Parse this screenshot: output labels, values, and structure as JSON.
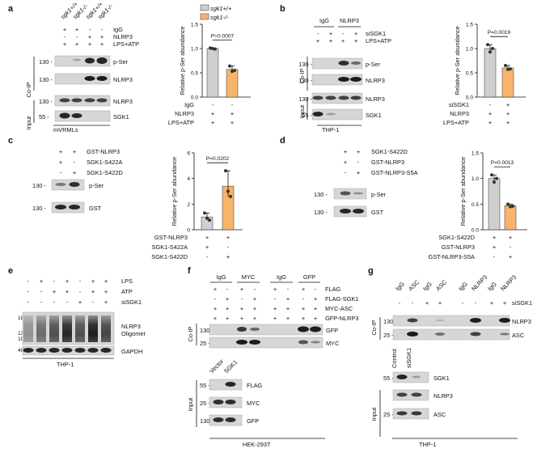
{
  "colors": {
    "wt": "#cfcfcf",
    "ko": "#f7b46a",
    "blot_dark": "#1c1c1c",
    "blot_bg": "#d6d6d6"
  },
  "panel_a": {
    "letter": "a",
    "lanes": [
      "sgk1+/+",
      "sgk1-/-",
      "sgk1+/+",
      "sgk1-/-"
    ],
    "rows": [
      {
        "label": "IgG",
        "marks": [
          "+",
          "+",
          "-",
          "-"
        ]
      },
      {
        "label": "NLRP3",
        "marks": [
          "-",
          "-",
          "+",
          "+"
        ]
      },
      {
        "label": "LPS+ATP",
        "marks": [
          "+",
          "+",
          "+",
          "+"
        ]
      }
    ],
    "coip": "Co-IP",
    "input": "Input",
    "mw": [
      "130 -",
      "130 -",
      "130 -",
      "55 -"
    ],
    "bands": [
      "p-Ser",
      "NLRP3",
      "NLRP3",
      "SGK1"
    ],
    "cell": "mVRMLs",
    "legend": [
      "sgk1+/+",
      "sgk1-/-"
    ],
    "ylabel": "Relative p-Ser abundance",
    "yticks": [
      "0.0",
      "0.5",
      "1.0",
      "1.5"
    ],
    "pval": "P=0.0007",
    "xrows": [
      {
        "label": "IgG",
        "marks": [
          "-",
          "-"
        ]
      },
      {
        "label": "NLRP3",
        "marks": [
          "+",
          "+"
        ]
      },
      {
        "label": "LPS+ATP",
        "marks": [
          "+",
          "+"
        ]
      }
    ]
  },
  "panel_b": {
    "letter": "b",
    "groups": [
      "IgG",
      "NLRP3"
    ],
    "rows": [
      {
        "label": "siSGK1",
        "marks": [
          "-",
          "+",
          "-",
          "+"
        ]
      },
      {
        "label": "LPS+ATP",
        "marks": [
          "+",
          "+",
          "+",
          "+"
        ]
      }
    ],
    "coip": "Co-IP",
    "input": "Input",
    "mw": [
      "130 -",
      "130 -",
      "130 -",
      "55 -"
    ],
    "bands": [
      "p-Ser",
      "NLRP3",
      "NLRP3",
      "SGK1"
    ],
    "cell": "THP-1",
    "ylabel": "Relative p-Ser abundance",
    "yticks": [
      "0.0",
      "0.5",
      "1.0",
      "1.5"
    ],
    "pval": "P=0.0019",
    "xrows": [
      {
        "label": "siSGK1",
        "marks": [
          "-",
          "+"
        ]
      },
      {
        "label": "NLRP3",
        "marks": [
          "+",
          "+"
        ]
      },
      {
        "label": "LPS+ATP",
        "marks": [
          "+",
          "+"
        ]
      }
    ]
  },
  "panel_c": {
    "letter": "c",
    "rows": [
      {
        "label": "GST-NLRP3",
        "marks": [
          "+",
          "+"
        ]
      },
      {
        "label": "SGK1-S422A",
        "marks": [
          "+",
          "-"
        ]
      },
      {
        "label": "SGK1-S422D",
        "marks": [
          "-",
          "+"
        ]
      }
    ],
    "mw": [
      "130 -",
      "130 -"
    ],
    "bands": [
      "p-Ser",
      "GST"
    ],
    "ylabel": "Relative p-Ser abundance",
    "yticks": [
      "0",
      "2",
      "4",
      "6"
    ],
    "pval": "P=0.0202",
    "xrows": [
      {
        "label": "GST-NLRP3",
        "marks": [
          "+",
          "+"
        ]
      },
      {
        "label": "SGK1-S422A",
        "marks": [
          "+",
          "-"
        ]
      },
      {
        "label": "SGK1-S422D",
        "marks": [
          "-",
          "+"
        ]
      }
    ]
  },
  "panel_d": {
    "letter": "d",
    "rows": [
      {
        "label": "SGK1-S422D",
        "marks": [
          "+",
          "+"
        ]
      },
      {
        "label": "GST-NLRP3",
        "marks": [
          "+",
          "-"
        ]
      },
      {
        "label": "GST-NLRP3-S5A",
        "marks": [
          "-",
          "+"
        ]
      }
    ],
    "mw": [
      "130 -",
      "130 -"
    ],
    "bands": [
      "p-Ser",
      "GST"
    ],
    "ylabel": "Relative p-Ser abundance",
    "yticks": [
      "0.0",
      "0.5",
      "1.0",
      "1.5"
    ],
    "pval": "P=0.0013",
    "xrows": [
      {
        "label": "SGK1-S422D",
        "marks": [
          "+",
          "+"
        ]
      },
      {
        "label": "GST-NLRP3",
        "marks": [
          "+",
          "-"
        ]
      },
      {
        "label": "GST-NLRP3-S5A",
        "marks": [
          "-",
          "+"
        ]
      }
    ]
  },
  "panel_e": {
    "letter": "e",
    "rows": [
      {
        "label": "LPS",
        "marks": [
          "-",
          "+",
          "-",
          "+",
          "-",
          "+",
          "+"
        ]
      },
      {
        "label": "ATP",
        "marks": [
          "-",
          "-",
          "+",
          "+",
          "-",
          "+",
          "+"
        ]
      },
      {
        "label": "siSGK1",
        "marks": [
          "-",
          "-",
          "-",
          "-",
          "+",
          "-",
          "+"
        ]
      }
    ],
    "mw": [
      "180",
      "130",
      "100",
      "40"
    ],
    "bands": [
      "NLRP3",
      "Oligomer",
      "GAPDH"
    ],
    "cell": "THP-1"
  },
  "panel_f": {
    "letter": "f",
    "groups": [
      "IgG",
      "MYC",
      "IgG",
      "GFP"
    ],
    "rows": [
      {
        "label": "FLAG",
        "marks": [
          "+",
          "-",
          "+",
          "-",
          "+",
          "-",
          "+",
          "-"
        ]
      },
      {
        "label": "FLAG-SGK1",
        "marks": [
          "-",
          "+",
          "-",
          "+",
          "-",
          "+",
          "-",
          "+"
        ]
      },
      {
        "label": "MYC-ASC",
        "marks": [
          "+",
          "+",
          "+",
          "+",
          "+",
          "+",
          "+",
          "+"
        ]
      },
      {
        "label": "GFP-NLRP3",
        "marks": [
          "+",
          "+",
          "+",
          "+",
          "+",
          "+",
          "+",
          "+"
        ]
      }
    ],
    "coip": "Co-IP",
    "input": "Input",
    "mw": [
      "130 -",
      "25 -",
      "55 -",
      "25 -",
      "130 -"
    ],
    "bands": [
      "GFP",
      "MYC",
      "FLAG",
      "MYC",
      "GFP"
    ],
    "lanes": [
      "Vector",
      "SGK1"
    ],
    "cell": "HEK-293T"
  },
  "panel_g": {
    "letter": "g",
    "lanes": [
      "IgG",
      "ASC",
      "IgG",
      "ASC",
      "IgG",
      "NLRP3",
      "IgG",
      "NLRP3"
    ],
    "rows": [
      {
        "label": "siSGK1",
        "marks": [
          "-",
          "-",
          "+",
          "+",
          "-",
          "-",
          "+",
          "+"
        ]
      }
    ],
    "coip": "Co-IP",
    "input": "Input",
    "mw": [
      "130 -",
      "25 -",
      "55 -",
      "25 -"
    ],
    "bands": [
      "NLRP3",
      "ASC",
      "SGK1",
      "NLRP3",
      "ASC"
    ],
    "input_lanes": [
      "Control",
      "siSGK1"
    ],
    "cell": "THP-1"
  },
  "chart_data": [
    {
      "type": "bar",
      "categories": [
        "sgk1+/+",
        "sgk1-/-"
      ],
      "values": [
        1.0,
        0.57
      ],
      "points": [
        [
          1.01,
          1.0,
          0.99
        ],
        [
          0.64,
          0.53,
          0.55
        ]
      ],
      "ylabel": "Relative p-Ser abundance",
      "ylim": [
        0,
        1.5
      ],
      "annotation": "P=0.0007"
    },
    {
      "type": "bar",
      "categories": [
        "siSGK1 -",
        "siSGK1 +"
      ],
      "values": [
        1.0,
        0.6
      ],
      "points": [
        [
          1.08,
          0.93,
          1.0
        ],
        [
          0.65,
          0.57,
          0.58
        ]
      ],
      "ylabel": "Relative p-Ser abundance",
      "ylim": [
        0,
        1.5
      ],
      "annotation": "P=0.0019"
    },
    {
      "type": "bar",
      "categories": [
        "SGK1-S422A",
        "SGK1-S422D"
      ],
      "values": [
        1.0,
        3.4
      ],
      "points": [
        [
          1.3,
          0.9,
          0.75
        ],
        [
          4.6,
          3.0,
          2.6
        ]
      ],
      "ylabel": "Relative p-Ser abundance",
      "ylim": [
        0,
        6
      ],
      "annotation": "P=0.0202"
    },
    {
      "type": "bar",
      "categories": [
        "GST-NLRP3",
        "GST-NLRP3-S5A"
      ],
      "values": [
        1.0,
        0.47
      ],
      "points": [
        [
          1.07,
          0.93,
          1.0
        ],
        [
          0.5,
          0.45,
          0.46
        ]
      ],
      "ylabel": "Relative p-Ser abundance",
      "ylim": [
        0,
        1.5
      ],
      "annotation": "P=0.0013"
    }
  ]
}
